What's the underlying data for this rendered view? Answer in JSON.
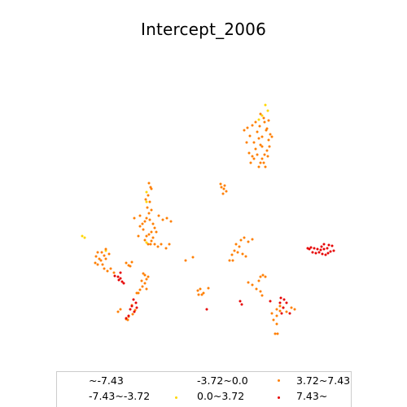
{
  "chart_data": {
    "type": "scatter",
    "title": "Intercept_2006",
    "legend": {
      "placement": "bottom",
      "entries": [
        {
          "label": "~-7.43",
          "color": "#00000000"
        },
        {
          "label": "-7.43~-3.72",
          "color": "#00000000"
        },
        {
          "label": "-3.72~0.0",
          "color": "#00000000"
        },
        {
          "label": "0.0~3.72",
          "color": "#ffd700"
        },
        {
          "label": "3.72~7.43",
          "color": "#ff7f00"
        },
        {
          "label": "7.43~",
          "color": "#e60000"
        }
      ]
    },
    "series": [
      {
        "class": "0.0~3.72",
        "color": "#ffd700",
        "points": [
          [
            322,
            142
          ],
          [
            318,
            147
          ],
          [
            326,
            129
          ],
          [
            329,
            136
          ],
          [
            101,
            290
          ],
          [
            104,
            292
          ],
          [
            130,
            308
          ],
          [
            180,
            298
          ],
          [
            180,
            248
          ],
          [
            180,
            236
          ]
        ]
      },
      {
        "class": "3.72~7.43",
        "color": "#ff7f00",
        "points": [
          [
            300,
            160
          ],
          [
            304,
            157
          ],
          [
            307,
            167
          ],
          [
            303,
            175
          ],
          [
            310,
            154
          ],
          [
            314,
            150
          ],
          [
            316,
            162
          ],
          [
            318,
            170
          ],
          [
            320,
            178
          ],
          [
            322,
            168
          ],
          [
            325,
            150
          ],
          [
            327,
            160
          ],
          [
            328,
            158
          ],
          [
            330,
            148
          ],
          [
            332,
            165
          ],
          [
            330,
            172
          ],
          [
            334,
            168
          ],
          [
            331,
            180
          ],
          [
            328,
            185
          ],
          [
            325,
            190
          ],
          [
            322,
            195
          ],
          [
            320,
            200
          ],
          [
            318,
            205
          ],
          [
            316,
            190
          ],
          [
            314,
            183
          ],
          [
            312,
            195
          ],
          [
            310,
            192
          ],
          [
            308,
            200
          ],
          [
            306,
            188
          ],
          [
            324,
            200
          ],
          [
            326,
            205
          ],
          [
            322,
            180
          ],
          [
            329,
            192
          ],
          [
            320,
            140
          ],
          [
            324,
            145
          ],
          [
            319,
            155
          ],
          [
            312,
            175
          ],
          [
            272,
            230
          ],
          [
            275,
            232
          ],
          [
            278,
            235
          ],
          [
            274,
            238
          ],
          [
            271,
            226
          ],
          [
            276,
            228
          ],
          [
            183,
            225
          ],
          [
            185,
            230
          ],
          [
            182,
            240
          ],
          [
            184,
            248
          ],
          [
            181,
            255
          ],
          [
            186,
            258
          ],
          [
            183,
            262
          ],
          [
            180,
            268
          ],
          [
            178,
            272
          ],
          [
            175,
            275
          ],
          [
            172,
            278
          ],
          [
            184,
            270
          ],
          [
            188,
            275
          ],
          [
            190,
            280
          ],
          [
            192,
            285
          ],
          [
            186,
            285
          ],
          [
            183,
            288
          ],
          [
            180,
            290
          ],
          [
            178,
            295
          ],
          [
            182,
            300
          ],
          [
            186,
            296
          ],
          [
            190,
            300
          ],
          [
            194,
            303
          ],
          [
            198,
            300
          ],
          [
            204,
            305
          ],
          [
            208,
            300
          ],
          [
            210,
            272
          ],
          [
            205,
            268
          ],
          [
            200,
            270
          ],
          [
            195,
            265
          ],
          [
            172,
            265
          ],
          [
            165,
            268
          ],
          [
            170,
            290
          ],
          [
            176,
            282
          ],
          [
            185,
            300
          ],
          [
            188,
            292
          ],
          [
            186,
            232
          ],
          [
            179,
            245
          ],
          [
            120,
            310
          ],
          [
            118,
            315
          ],
          [
            122,
            318
          ],
          [
            125,
            310
          ],
          [
            128,
            314
          ],
          [
            124,
            320
          ],
          [
            120,
            325
          ],
          [
            117,
            323
          ],
          [
            126,
            325
          ],
          [
            130,
            318
          ],
          [
            132,
            333
          ],
          [
            136,
            330
          ],
          [
            140,
            335
          ],
          [
            128,
            330
          ],
          [
            134,
            312
          ],
          [
            130,
            306
          ],
          [
            155,
            323
          ],
          [
            158,
            326
          ],
          [
            162,
            322
          ],
          [
            160,
            327
          ],
          [
            178,
            338
          ],
          [
            182,
            340
          ],
          [
            180,
            343
          ],
          [
            178,
            348
          ],
          [
            175,
            352
          ],
          [
            172,
            356
          ],
          [
            170,
            360
          ],
          [
            180,
            355
          ],
          [
            174,
            345
          ],
          [
            176,
            336
          ],
          [
            168,
            360
          ],
          [
            148,
            380
          ],
          [
            145,
            383
          ],
          [
            162,
            375
          ],
          [
            166,
            381
          ],
          [
            155,
            392
          ],
          [
            158,
            389
          ],
          [
            163,
            386
          ],
          [
            157,
            393
          ],
          [
            243,
            357
          ],
          [
            246,
            355
          ],
          [
            250,
            360
          ],
          [
            248,
            362
          ],
          [
            244,
            362
          ],
          [
            256,
            354
          ],
          [
            228,
            320
          ],
          [
            237,
            316
          ],
          [
            290,
            300
          ],
          [
            294,
            303
          ],
          [
            288,
            308
          ],
          [
            285,
            313
          ],
          [
            282,
            320
          ],
          [
            292,
            310
          ],
          [
            296,
            295
          ],
          [
            300,
            292
          ],
          [
            305,
            297
          ],
          [
            310,
            294
          ],
          [
            298,
            312
          ],
          [
            302,
            315
          ],
          [
            286,
            320
          ],
          [
            320,
            340
          ],
          [
            323,
            338
          ],
          [
            326,
            340
          ],
          [
            318,
            345
          ],
          [
            310,
            350
          ],
          [
            315,
            355
          ],
          [
            320,
            358
          ],
          [
            322,
            363
          ],
          [
            305,
            347
          ],
          [
            340,
            380
          ],
          [
            344,
            382
          ],
          [
            340,
            388
          ],
          [
            336,
            393
          ],
          [
            340,
            398
          ],
          [
            338,
            410
          ],
          [
            341,
            410
          ],
          [
            344,
            376
          ],
          [
            358,
            378
          ],
          [
            362,
            380
          ],
          [
            352,
            383
          ],
          [
            348,
            378
          ],
          [
            334,
            385
          ]
        ]
      },
      {
        "class": "7.43~",
        "color": "#e60000",
        "points": [
          [
            378,
            305
          ],
          [
            382,
            304
          ],
          [
            386,
            305
          ],
          [
            390,
            306
          ],
          [
            395,
            303
          ],
          [
            398,
            306
          ],
          [
            402,
            305
          ],
          [
            406,
            309
          ],
          [
            410,
            308
          ],
          [
            408,
            302
          ],
          [
            404,
            301
          ],
          [
            398,
            300
          ],
          [
            392,
            310
          ],
          [
            396,
            312
          ],
          [
            400,
            313
          ],
          [
            403,
            311
          ],
          [
            388,
            311
          ],
          [
            384,
            310
          ],
          [
            380,
            306
          ],
          [
            394,
            307
          ],
          [
            145,
            340
          ],
          [
            148,
            342
          ],
          [
            150,
            346
          ],
          [
            146,
            344
          ],
          [
            152,
            348
          ],
          [
            141,
            339
          ],
          [
            148,
            335
          ],
          [
            164,
            368
          ],
          [
            167,
            372
          ],
          [
            162,
            376
          ],
          [
            168,
            378
          ],
          [
            160,
            380
          ],
          [
            165,
            383
          ],
          [
            155,
            391
          ],
          [
            158,
            388
          ],
          [
            295,
            370
          ],
          [
            297,
            374
          ],
          [
            254,
            380
          ],
          [
            332,
            370
          ],
          [
            345,
            366
          ],
          [
            349,
            368
          ],
          [
            352,
            372
          ],
          [
            348,
            378
          ],
          [
            346,
            385
          ],
          [
            356,
            385
          ],
          [
            344,
            372
          ]
        ]
      }
    ]
  }
}
